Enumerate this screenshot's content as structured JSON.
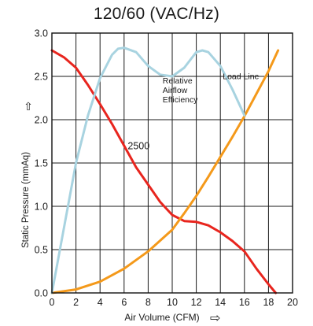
{
  "chart_data": {
    "type": "line",
    "title": "120/60 (VAC/Hz)",
    "xlabel": "Air Volume (CFM)",
    "ylabel": "Static Pressure (mmAq)",
    "xlim": [
      0,
      20
    ],
    "ylim": [
      0,
      3.0
    ],
    "x_ticks": [
      "0",
      "2",
      "4",
      "6",
      "8",
      "10",
      "12",
      "14",
      "16",
      "18",
      "20"
    ],
    "y_ticks": [
      "0.0",
      "0.5",
      "1.0",
      "1.5",
      "2.0",
      "2.5",
      "3.0"
    ],
    "grid": true,
    "series": [
      {
        "name": "2500",
        "color": "#e8251e",
        "points": [
          [
            0,
            2.8
          ],
          [
            1,
            2.72
          ],
          [
            2,
            2.6
          ],
          [
            3,
            2.4
          ],
          [
            4,
            2.18
          ],
          [
            5,
            1.95
          ],
          [
            6,
            1.7
          ],
          [
            7,
            1.45
          ],
          [
            8,
            1.25
          ],
          [
            9,
            1.05
          ],
          [
            10,
            0.9
          ],
          [
            11,
            0.83
          ],
          [
            12,
            0.82
          ],
          [
            13,
            0.78
          ],
          [
            14,
            0.7
          ],
          [
            15,
            0.6
          ],
          [
            16,
            0.48
          ],
          [
            17,
            0.28
          ],
          [
            18,
            0.1
          ],
          [
            18.6,
            0
          ]
        ]
      },
      {
        "name": "Load Line",
        "color": "#f4991a",
        "points": [
          [
            0,
            0
          ],
          [
            2,
            0.04
          ],
          [
            4,
            0.13
          ],
          [
            6,
            0.28
          ],
          [
            8,
            0.48
          ],
          [
            10,
            0.73
          ],
          [
            11,
            0.92
          ],
          [
            12,
            1.12
          ],
          [
            13,
            1.34
          ],
          [
            14,
            1.57
          ],
          [
            15,
            1.8
          ],
          [
            16,
            2.04
          ],
          [
            17,
            2.3
          ],
          [
            18,
            2.56
          ],
          [
            18.8,
            2.8
          ]
        ]
      },
      {
        "name": "Relative Airflow Efficiency",
        "color": "#a8d3e0",
        "points": [
          [
            0,
            0
          ],
          [
            1,
            0.75
          ],
          [
            2,
            1.5
          ],
          [
            3,
            2.05
          ],
          [
            4,
            2.48
          ],
          [
            5,
            2.75
          ],
          [
            5.5,
            2.82
          ],
          [
            6,
            2.83
          ],
          [
            7,
            2.78
          ],
          [
            8,
            2.62
          ],
          [
            9,
            2.52
          ],
          [
            10,
            2.5
          ],
          [
            11,
            2.6
          ],
          [
            12,
            2.78
          ],
          [
            12.5,
            2.8
          ],
          [
            13,
            2.78
          ],
          [
            14,
            2.62
          ],
          [
            15,
            2.35
          ],
          [
            16,
            2.05
          ]
        ]
      }
    ],
    "annotations": [
      {
        "text": "2500",
        "x": 6.3,
        "y": 1.66
      },
      {
        "text": "Relative",
        "x": 9.2,
        "y": 2.42
      },
      {
        "text": "Airflow",
        "x": 9.2,
        "y": 2.31
      },
      {
        "text": "Efficiency",
        "x": 9.2,
        "y": 2.2
      },
      {
        "text": "Load Line",
        "x": 14.2,
        "y": 2.47
      }
    ],
    "axis_arrows": {
      "y": "⇧",
      "x": "⇨"
    }
  }
}
